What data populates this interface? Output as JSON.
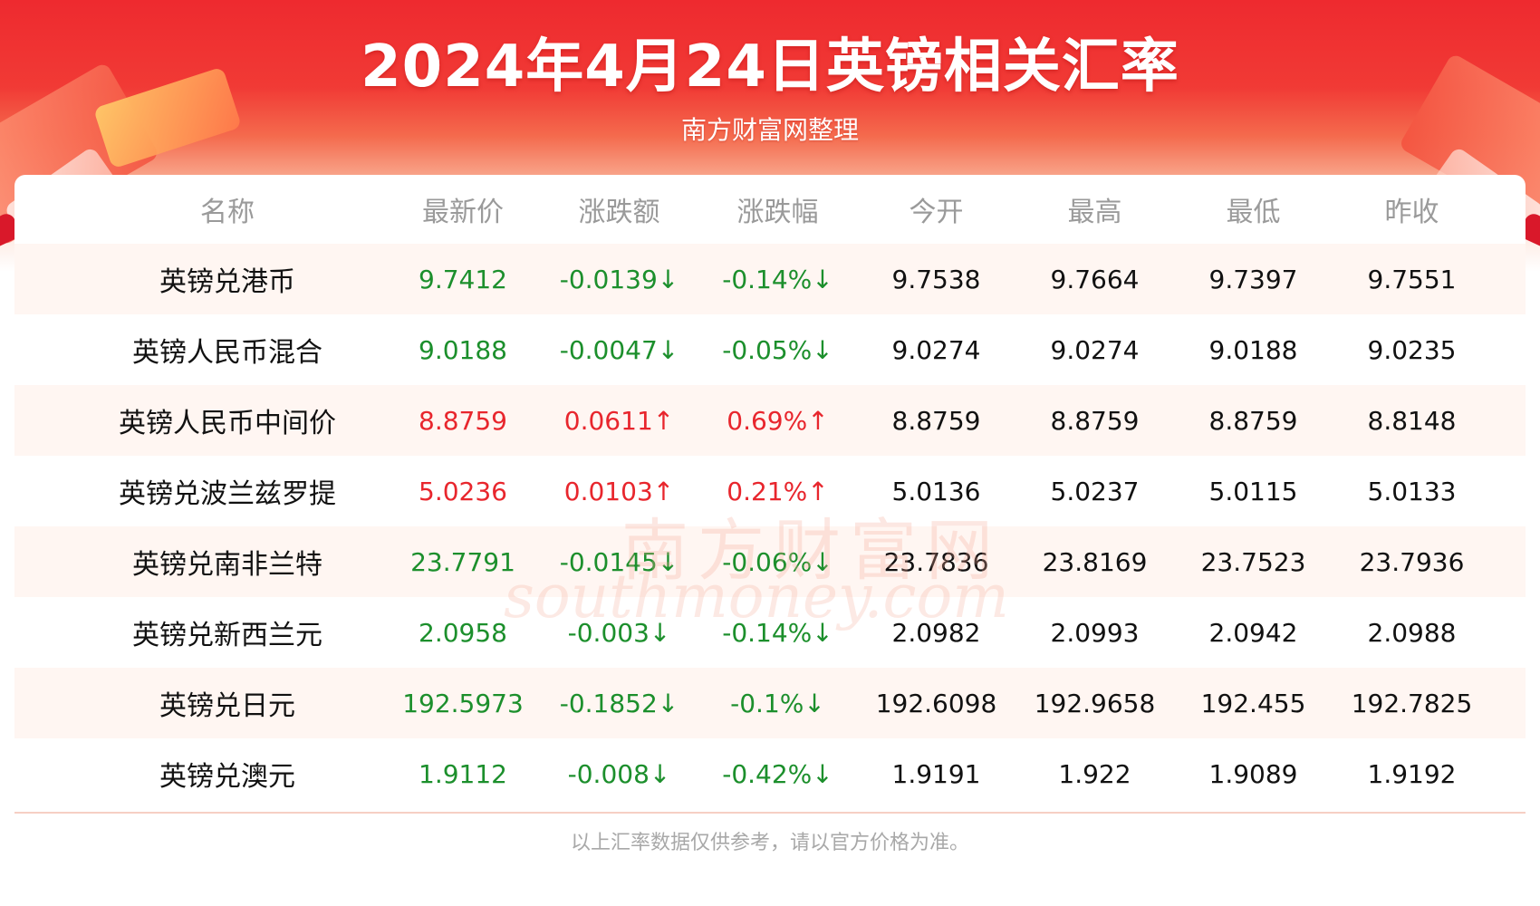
{
  "header": {
    "title": "2024年4月24日英镑相关汇率",
    "subtitle": "南方财富网整理"
  },
  "watermark": {
    "cn": "南方财富网",
    "en": "southmoney.com"
  },
  "table": {
    "columns": [
      "名称",
      "最新价",
      "涨跌额",
      "涨跌幅",
      "今开",
      "最高",
      "最低",
      "昨收"
    ],
    "rows": [
      {
        "name": "英镑兑港币",
        "latest": "9.7412",
        "change": "-0.0139↓",
        "pct": "-0.14%↓",
        "open": "9.7538",
        "high": "9.7664",
        "low": "9.7397",
        "prev": "9.7551",
        "trend": "down"
      },
      {
        "name": "英镑人民币混合",
        "latest": "9.0188",
        "change": "-0.0047↓",
        "pct": "-0.05%↓",
        "open": "9.0274",
        "high": "9.0274",
        "low": "9.0188",
        "prev": "9.0235",
        "trend": "down"
      },
      {
        "name": "英镑人民币中间价",
        "latest": "8.8759",
        "change": "0.0611↑",
        "pct": "0.69%↑",
        "open": "8.8759",
        "high": "8.8759",
        "low": "8.8759",
        "prev": "8.8148",
        "trend": "up"
      },
      {
        "name": "英镑兑波兰兹罗提",
        "latest": "5.0236",
        "change": "0.0103↑",
        "pct": "0.21%↑",
        "open": "5.0136",
        "high": "5.0237",
        "low": "5.0115",
        "prev": "5.0133",
        "trend": "up"
      },
      {
        "name": "英镑兑南非兰特",
        "latest": "23.7791",
        "change": "-0.0145↓",
        "pct": "-0.06%↓",
        "open": "23.7836",
        "high": "23.8169",
        "low": "23.7523",
        "prev": "23.7936",
        "trend": "down"
      },
      {
        "name": "英镑兑新西兰元",
        "latest": "2.0958",
        "change": "-0.003↓",
        "pct": "-0.14%↓",
        "open": "2.0982",
        "high": "2.0993",
        "low": "2.0942",
        "prev": "2.0988",
        "trend": "down"
      },
      {
        "name": "英镑兑日元",
        "latest": "192.5973",
        "change": "-0.1852↓",
        "pct": "-0.1%↓",
        "open": "192.6098",
        "high": "192.9658",
        "low": "192.455",
        "prev": "192.7825",
        "trend": "down"
      },
      {
        "name": "英镑兑澳元",
        "latest": "1.9112",
        "change": "-0.008↓",
        "pct": "-0.42%↓",
        "open": "1.9191",
        "high": "1.922",
        "low": "1.9089",
        "prev": "1.9192",
        "trend": "down"
      }
    ]
  },
  "footer": {
    "note": "以上汇率数据仅供参考，请以官方价格为准。"
  },
  "colors": {
    "up": "#e8262d",
    "down": "#1c8f2c",
    "banner": "#ee2a2f"
  }
}
